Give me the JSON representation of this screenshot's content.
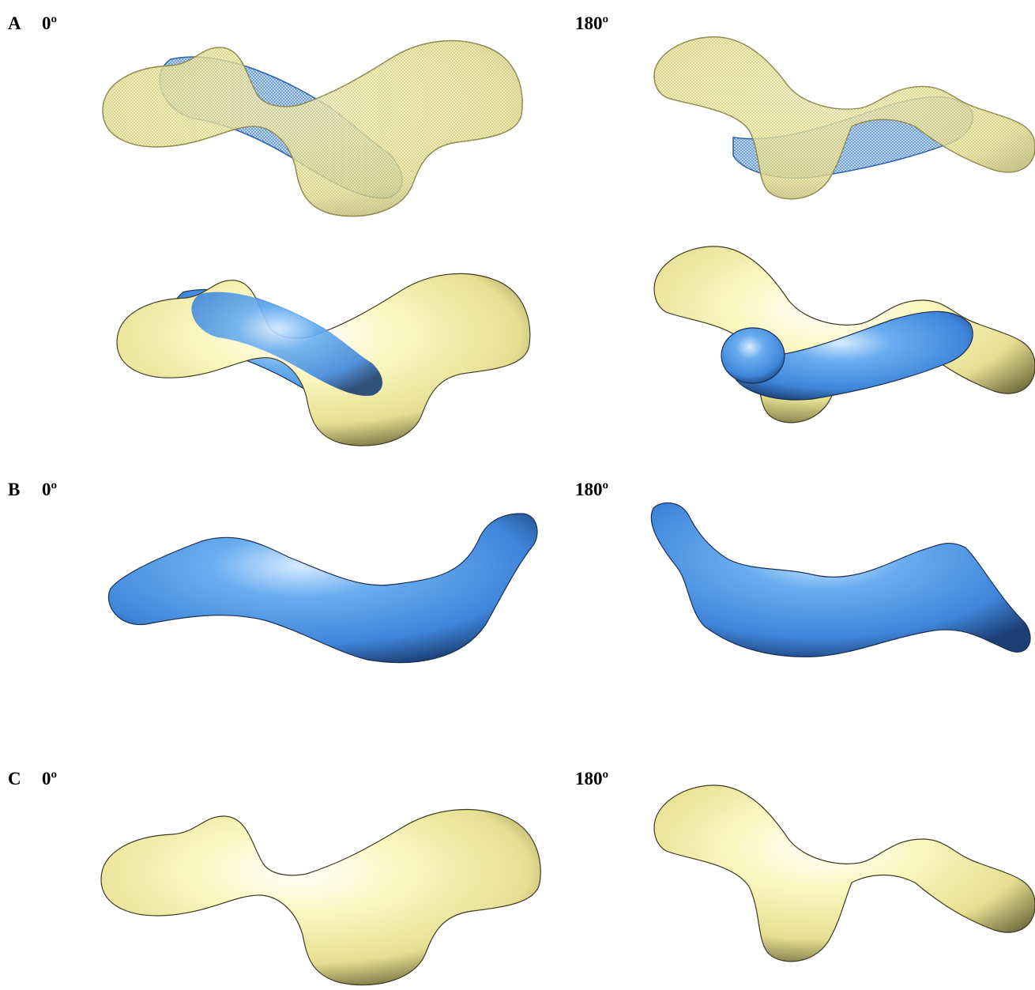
{
  "panels": [
    {
      "label": "A",
      "views": [
        "0º",
        "180º"
      ]
    },
    {
      "label": "B",
      "views": [
        "0º",
        "180º"
      ]
    },
    {
      "label": "C",
      "views": [
        "0º",
        "180º"
      ]
    }
  ]
}
